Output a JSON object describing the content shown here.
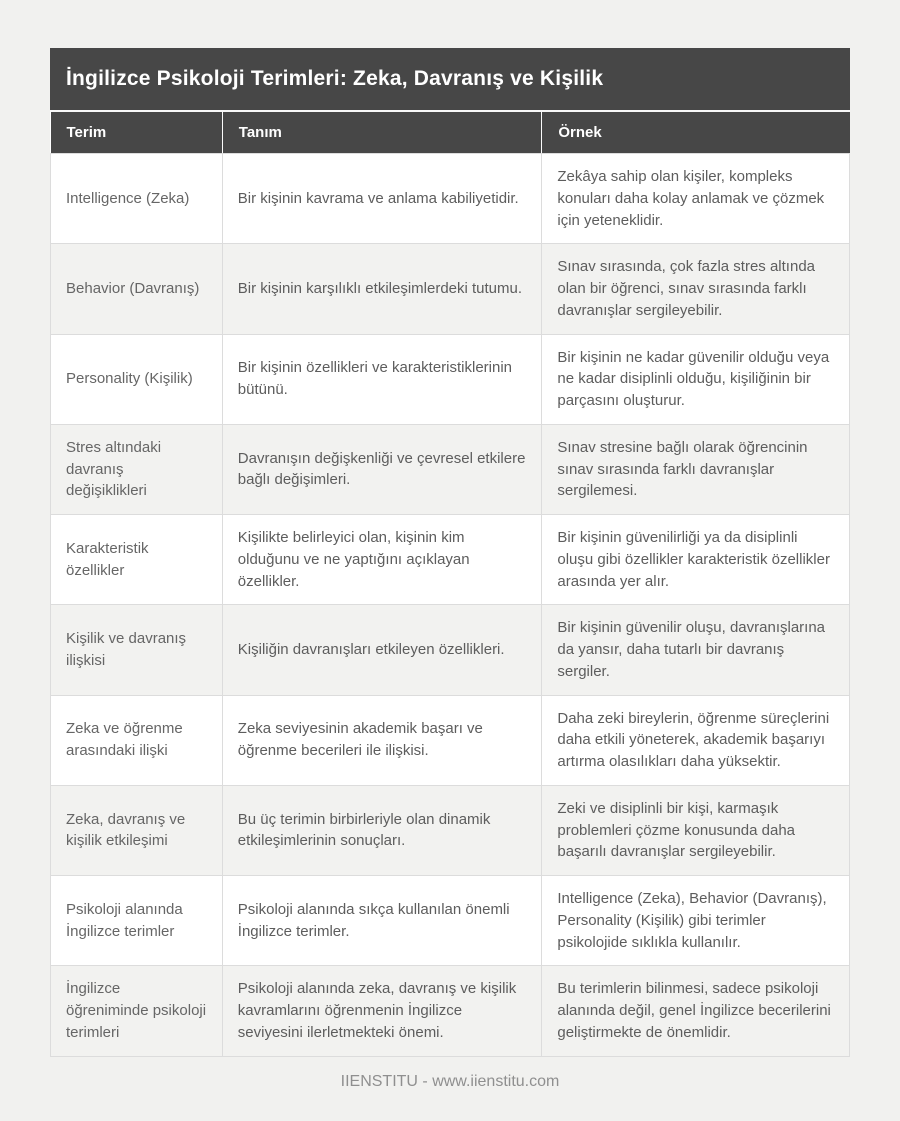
{
  "page": {
    "title": "İngilizce Psikoloji Terimleri: Zeka, Davranış ve Kişilik",
    "footer": "IIENSTITU - www.iienstitu.com"
  },
  "colors": {
    "header_bg": "#474747",
    "page_bg": "#f1f1ef",
    "row_alt_bg": "#f2f2f0",
    "border": "#dcdcdc",
    "body_text": "#5d5d5d"
  },
  "table": {
    "columns": [
      "Terim",
      "Tanım",
      "Örnek"
    ],
    "rows": [
      {
        "term": "Intelligence (Zeka)",
        "definition": "Bir kişinin kavrama ve anlama kabiliyetidir.",
        "example": "Zekâya sahip olan kişiler, kompleks konuları daha kolay anlamak ve çözmek için yeteneklidir."
      },
      {
        "term": "Behavior (Davranış)",
        "definition": "Bir kişinin karşılıklı etkileşimlerdeki tutumu.",
        "example": "Sınav sırasında, çok fazla stres altında olan bir öğrenci, sınav sırasında farklı davranışlar sergileyebilir."
      },
      {
        "term": "Personality (Kişilik)",
        "definition": "Bir kişinin özellikleri ve karakteristiklerinin bütünü.",
        "example": "Bir kişinin ne kadar güvenilir olduğu veya ne kadar disiplinli olduğu, kişiliğinin bir parçasını oluşturur."
      },
      {
        "term": "Stres altındaki davranış değişiklikleri",
        "definition": "Davranışın değişkenliği ve çevresel etkilere bağlı değişimleri.",
        "example": "Sınav stresine bağlı olarak öğrencinin sınav sırasında farklı davranışlar sergilemesi."
      },
      {
        "term": "Karakteristik özellikler",
        "definition": "Kişilikte belirleyici olan, kişinin kim olduğunu ve ne yaptığını açıklayan özellikler.",
        "example": "Bir kişinin güvenilirliği ya da disiplinli oluşu gibi özellikler karakteristik özellikler arasında yer alır."
      },
      {
        "term": "Kişilik ve davranış ilişkisi",
        "definition": "Kişiliğin davranışları etkileyen özellikleri.",
        "example": "Bir kişinin güvenilir oluşu, davranışlarına da yansır, daha tutarlı bir davranış sergiler."
      },
      {
        "term": "Zeka ve öğrenme arasındaki ilişki",
        "definition": "Zeka seviyesinin akademik başarı ve öğrenme becerileri ile ilişkisi.",
        "example": "Daha zeki bireylerin, öğrenme süreçlerini daha etkili yöneterek, akademik başarıyı artırma olasılıkları daha yüksektir."
      },
      {
        "term": "Zeka, davranış ve kişilik etkileşimi",
        "definition": "Bu üç terimin birbirleriyle olan dinamik etkileşimlerinin sonuçları.",
        "example": "Zeki ve disiplinli bir kişi, karmaşık problemleri çözme konusunda daha başarılı davranışlar sergileyebilir."
      },
      {
        "term": "Psikoloji alanında İngilizce terimler",
        "definition": "Psikoloji alanında sıkça kullanılan önemli İngilizce terimler.",
        "example": "Intelligence (Zeka), Behavior (Davranış), Personality (Kişilik) gibi terimler psikolojide sıklıkla kullanılır."
      },
      {
        "term": "İngilizce öğreniminde psikoloji terimleri",
        "definition": "Psikoloji alanında zeka, davranış ve kişilik kavramlarını öğrenmenin İngilizce seviyesini ilerletmekteki önemi.",
        "example": "Bu terimlerin bilinmesi, sadece psikoloji alanında değil, genel İngilizce becerilerini geliştirmekte de önemlidir."
      }
    ]
  }
}
